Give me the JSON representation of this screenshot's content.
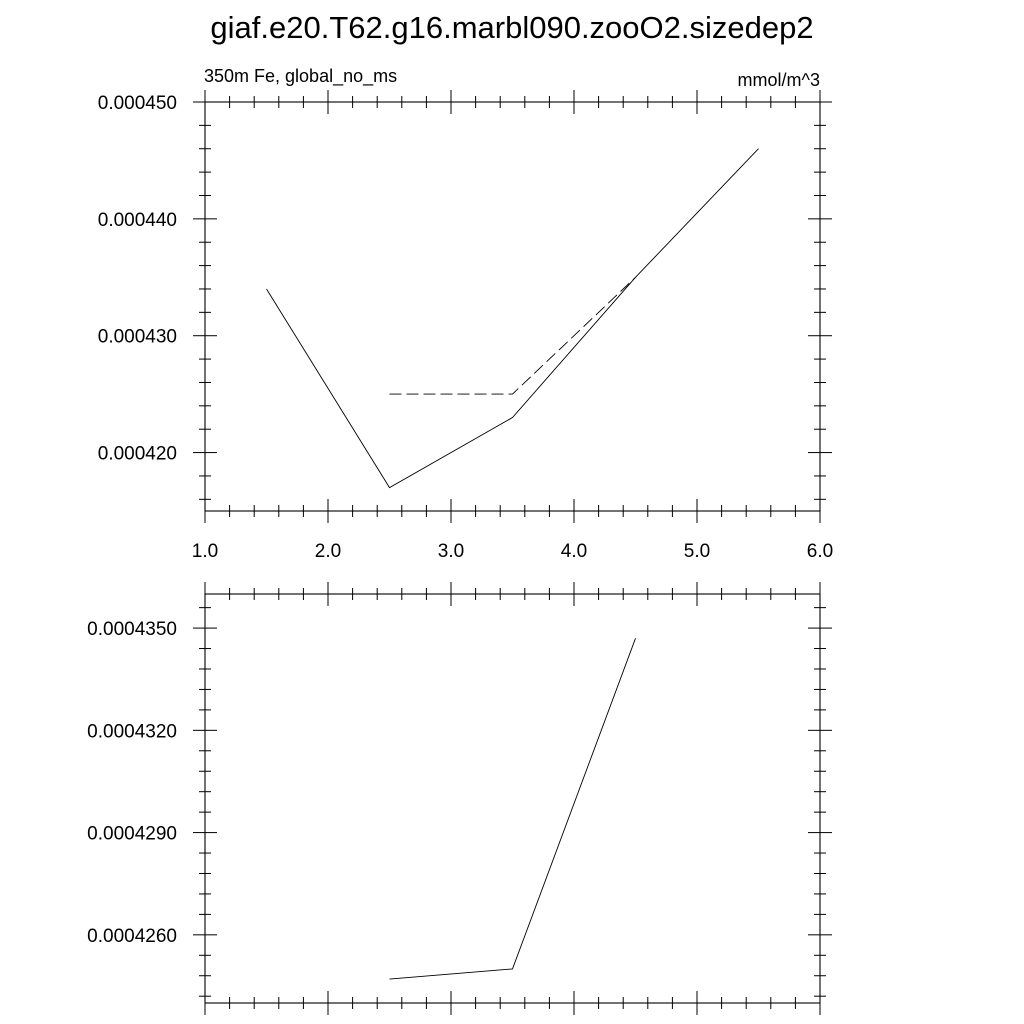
{
  "title": "giaf.e20.T62.g16.marbl090.zooO2.sizedep2",
  "chart_data": [
    {
      "type": "line",
      "subtitle_left": "350m Fe, global_no_ms",
      "subtitle_right": "mmol/m^3",
      "xlim": [
        1.0,
        6.0
      ],
      "ylim": [
        0.000415,
        0.00045
      ],
      "x_major_ticks": [
        1.0,
        2.0,
        3.0,
        4.0,
        5.0,
        6.0
      ],
      "x_tick_labels": [
        "1.0",
        "2.0",
        "3.0",
        "4.0",
        "5.0",
        "6.0"
      ],
      "y_major_ticks": [
        0.00042,
        0.00043,
        0.00044,
        0.00045
      ],
      "y_tick_labels": [
        "0.000420",
        "0.000430",
        "0.000440",
        "0.000450"
      ],
      "grid": false,
      "series": [
        {
          "style": "solid",
          "x": [
            1.5,
            2.5,
            3.5,
            4.5,
            5.5
          ],
          "y": [
            0.000434,
            0.000417,
            0.000423,
            0.000435,
            0.000446
          ]
        },
        {
          "style": "dashed",
          "x": [
            2.5,
            3.5,
            4.5
          ],
          "y": [
            0.000425,
            0.000425,
            0.000435
          ]
        }
      ]
    },
    {
      "type": "line",
      "xlim": [
        1.0,
        6.0
      ],
      "ylim": [
        0.000424,
        0.000436
      ],
      "x_major_ticks": [
        1.0,
        2.0,
        3.0,
        4.0,
        5.0,
        6.0
      ],
      "x_tick_labels": [],
      "y_major_ticks": [
        0.000426,
        0.000429,
        0.000432,
        0.000435
      ],
      "y_tick_labels": [
        "0.0004260",
        "0.0004290",
        "0.0004320",
        "0.0004350"
      ],
      "grid": false,
      "series": [
        {
          "style": "solid",
          "x": [
            2.5,
            3.5,
            4.5
          ],
          "y": [
            0.0004247,
            0.000425,
            0.0004347
          ]
        }
      ]
    }
  ]
}
